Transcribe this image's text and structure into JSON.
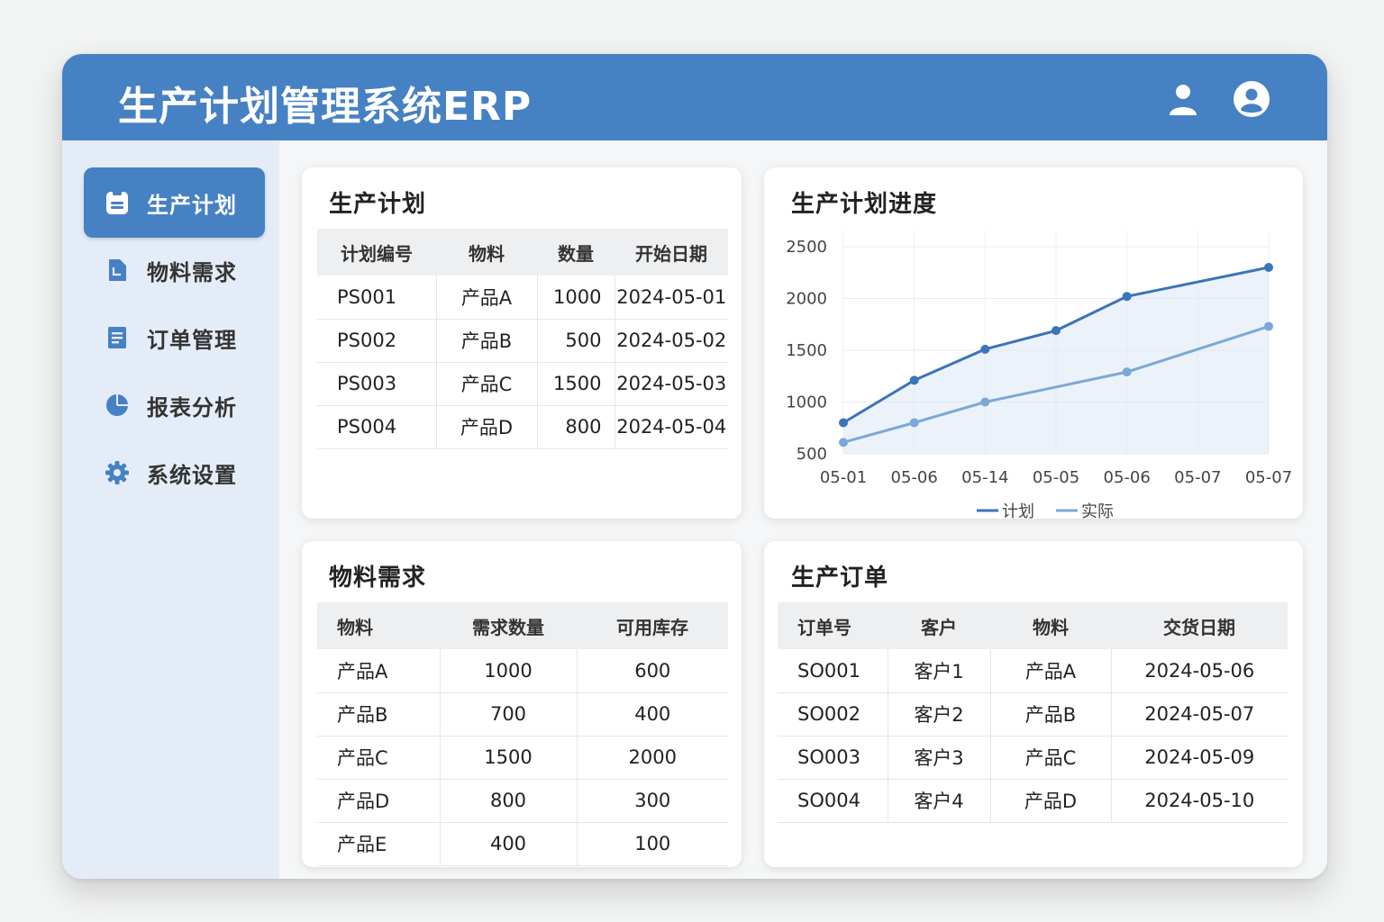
{
  "header": {
    "title": "生产计划管理系统ERP",
    "icons": [
      "user-icon",
      "account-circle-icon"
    ]
  },
  "sidebar": {
    "items": [
      {
        "label": "生产计划",
        "icon": "clipboard-icon",
        "active": true
      },
      {
        "label": "物料需求",
        "icon": "document-icon",
        "active": false
      },
      {
        "label": "订单管理",
        "icon": "list-document-icon",
        "active": false
      },
      {
        "label": "报表分析",
        "icon": "pie-chart-icon",
        "active": false
      },
      {
        "label": "系统设置",
        "icon": "gear-icon",
        "active": false
      }
    ]
  },
  "plan": {
    "title": "生产计划",
    "columns": [
      "计划编号",
      "物料",
      "数量",
      "开始日期"
    ],
    "rows": [
      [
        "PS001",
        "产品A",
        "1000",
        "2024-05-01"
      ],
      [
        "PS002",
        "产品B",
        "500",
        "2024-05-02"
      ],
      [
        "PS003",
        "产品C",
        "1500",
        "2024-05-03"
      ],
      [
        "PS004",
        "产品D",
        "800",
        "2024-05-04"
      ]
    ]
  },
  "progress": {
    "title": "生产计划进度"
  },
  "chart_data": {
    "type": "line",
    "title": "生产计划进度",
    "x": [
      "05-01",
      "05-06",
      "05-14",
      "05-05",
      "05-06",
      "05-07",
      "05-07"
    ],
    "yticks": [
      500,
      1000,
      1500,
      2000,
      2500
    ],
    "ylim": [
      500,
      2500
    ],
    "grid": true,
    "legend": "bottom",
    "series": [
      {
        "name": "计划",
        "values": [
          800,
          1210,
          1510,
          1690,
          2020,
          null,
          2300
        ],
        "color": "#3b74b8"
      },
      {
        "name": "实际",
        "values": [
          610,
          800,
          1000,
          null,
          1290,
          null,
          1730
        ],
        "color": "#7ba8d8"
      }
    ]
  },
  "material": {
    "title": "物料需求",
    "columns": [
      "物料",
      "需求数量",
      "可用库存"
    ],
    "rows": [
      [
        "产品A",
        "1000",
        "600"
      ],
      [
        "产品B",
        "700",
        "400"
      ],
      [
        "产品C",
        "1500",
        "2000"
      ],
      [
        "产品D",
        "800",
        "300"
      ],
      [
        "产品E",
        "400",
        "100"
      ]
    ]
  },
  "orders": {
    "title": "生产订单",
    "columns": [
      "订单号",
      "客户",
      "物料",
      "交货日期"
    ],
    "rows": [
      [
        "SO001",
        "客户1",
        "产品A",
        "2024-05-06"
      ],
      [
        "SO002",
        "客户2",
        "产品B",
        "2024-05-07"
      ],
      [
        "SO003",
        "客户3",
        "产品C",
        "2024-05-09"
      ],
      [
        "SO004",
        "客户4",
        "产品D",
        "2024-05-10"
      ]
    ]
  },
  "colors": {
    "header": "#4681c4",
    "sidebar": "#e4edf7",
    "plan_line": "#3b74b8",
    "actual_line": "#7ba8d8"
  }
}
